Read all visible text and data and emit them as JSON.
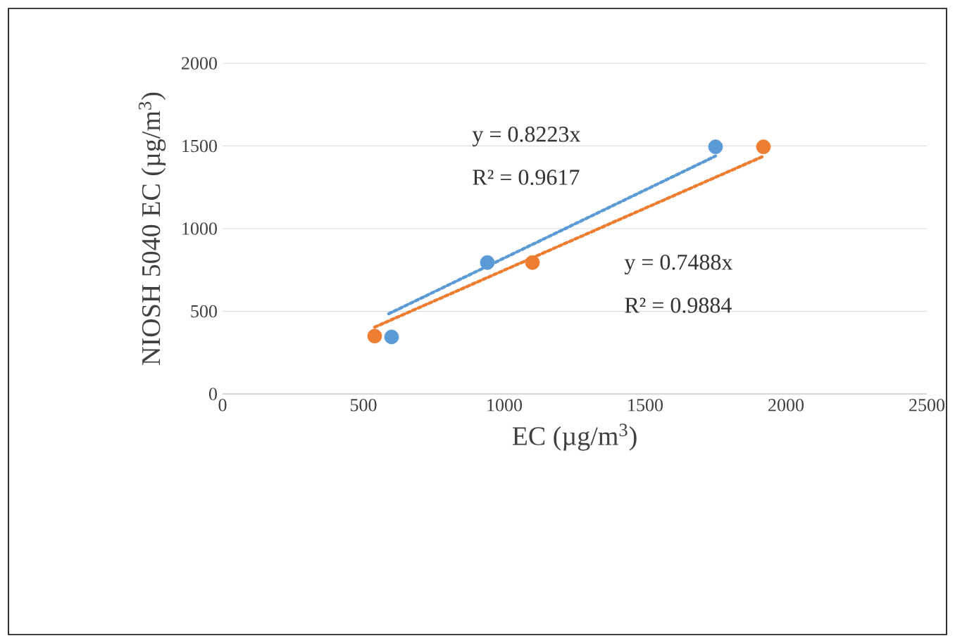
{
  "chart_data": {
    "type": "scatter",
    "xlabel": "EC (µg/m$^{3}$)",
    "ylabel": "NIOSH 5040 EC (µg/m$^{3}$)",
    "xlim": [
      0,
      2500
    ],
    "ylim": [
      0,
      2000
    ],
    "xticks": [
      0,
      500,
      1000,
      1500,
      2000,
      2500
    ],
    "yticks": [
      0,
      500,
      1000,
      1500,
      2000
    ],
    "grid": "y",
    "marker": "circle",
    "series": [
      {
        "color": "#5b9bd5",
        "x": [
          600,
          940,
          1750
        ],
        "values": [
          345,
          795,
          1495
        ]
      },
      {
        "color": "#ed7d31",
        "x": [
          540,
          1100,
          1920
        ],
        "values": [
          350,
          795,
          1495
        ]
      },
      {
        "type": "line",
        "line_style": "dotted",
        "marker": "none",
        "color": "#5b9bd5",
        "x": [
          590,
          1750
        ],
        "values": [
          485,
          1439
        ]
      },
      {
        "type": "line",
        "line_style": "dotted",
        "marker": "none",
        "color": "#ed7d31",
        "x": [
          540,
          1920
        ],
        "values": [
          404,
          1438
        ]
      }
    ],
    "annotations": [
      "y = 0.8223x",
      "R² = 0.9617",
      "y = 0.7488x",
      "R² = 0.9884"
    ]
  }
}
